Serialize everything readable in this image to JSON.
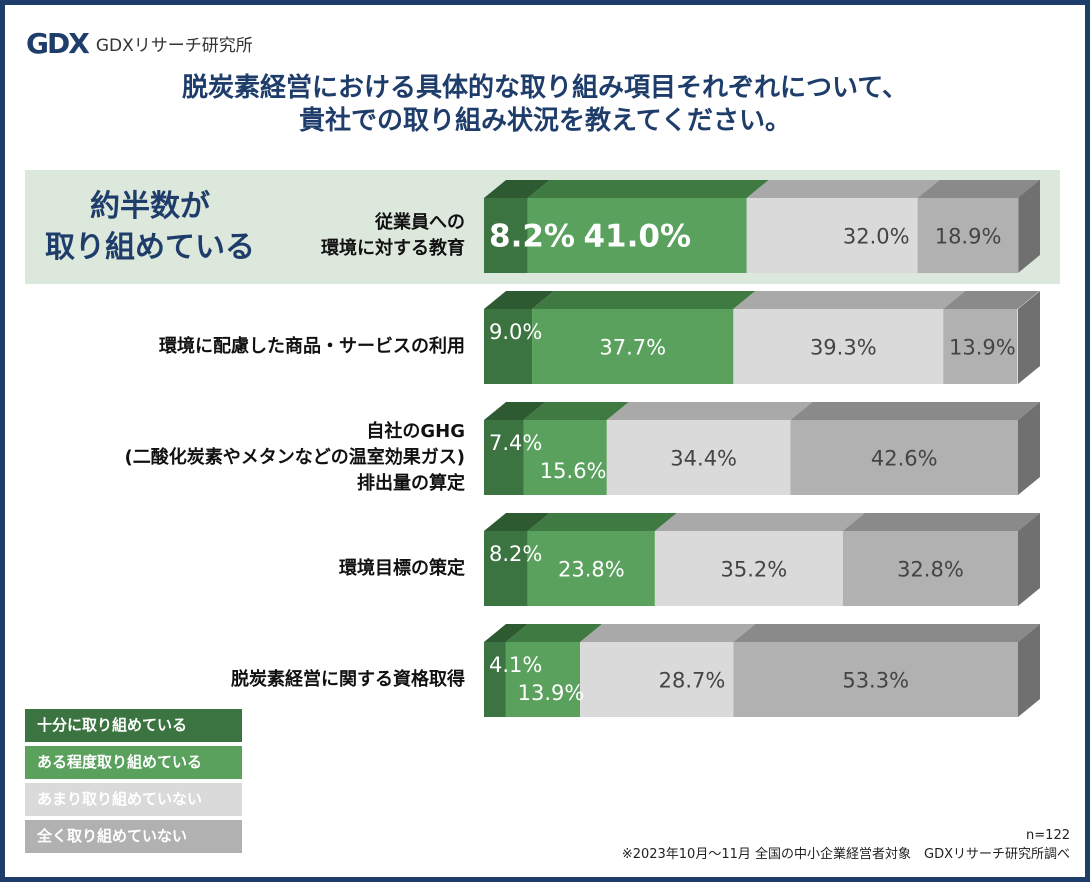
{
  "brand": {
    "logo_mark": "GDX",
    "logo_name": "GDXリサーチ研究所"
  },
  "title": {
    "line1": "脱炭素経営における具体的な取り組み項目それぞれについて、",
    "line2": "貴社での取り組み状況を教えてください。"
  },
  "callout": {
    "line1": "約半数が",
    "line2": "取り組めている"
  },
  "notes": {
    "n": "n=122",
    "source": "※2023年10月～11月 全国の中小企業経営者対象　GDXリサーチ研究所調べ"
  },
  "colors": {
    "fully": "#3c7441",
    "somewhat": "#5aa15e",
    "not_much": "#dadada",
    "not_at_all": "#b1b1b1",
    "highlight_bg": "#dde8dc",
    "title": "#1f3d6b"
  },
  "chart_data": {
    "type": "bar",
    "orientation": "horizontal",
    "stacked": "100%",
    "categories": [
      [
        "従業員への",
        "環境に対する教育"
      ],
      [
        "環境に配慮した商品・サービスの利用"
      ],
      [
        "自社のGHG",
        "(二酸化炭素やメタンなどの温室効果ガス)",
        "排出量の算定"
      ],
      [
        "環境目標の策定"
      ],
      [
        "脱炭素経営に関する資格取得"
      ]
    ],
    "series": [
      {
        "name": "十分に取り組めている",
        "values": [
          8.2,
          9.0,
          7.4,
          8.2,
          4.1
        ],
        "labels": [
          "8.2%",
          "9.0%",
          "7.4%",
          "8.2%",
          "4.1%"
        ]
      },
      {
        "name": "ある程度取り組めている",
        "values": [
          41.0,
          37.7,
          15.6,
          23.8,
          13.9
        ],
        "labels": [
          "41.0%",
          "37.7%",
          "15.6%",
          "23.8%",
          "13.9%"
        ]
      },
      {
        "name": "あまり取り組めていない",
        "values": [
          32.0,
          39.3,
          34.4,
          35.2,
          28.7
        ],
        "labels": [
          "32.0%",
          "39.3%",
          "34.4%",
          "35.2%",
          "28.7%"
        ]
      },
      {
        "name": "全く取り組めていない",
        "values": [
          18.9,
          13.9,
          42.6,
          32.8,
          53.3
        ],
        "labels": [
          "18.9%",
          "13.9%",
          "42.6%",
          "32.8%",
          "53.3%"
        ]
      }
    ],
    "highlighted_category": 0,
    "legend_position": "bottom-left"
  }
}
